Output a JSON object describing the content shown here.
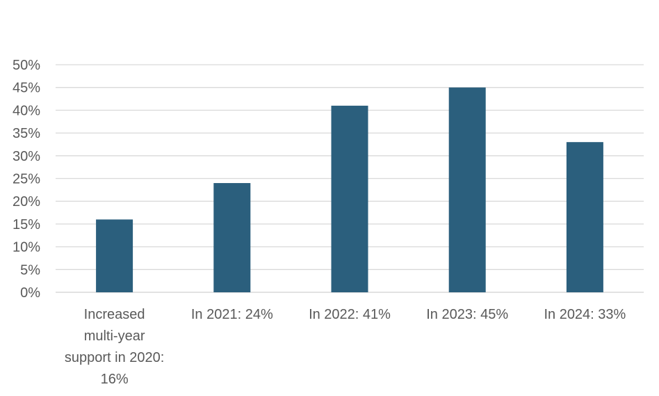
{
  "chart_data": {
    "type": "bar",
    "title": "",
    "xlabel": "",
    "ylabel": "",
    "categories": [
      [
        "Increased",
        "multi-year",
        "support in 2020:",
        "16%"
      ],
      [
        "In 2021: 24%"
      ],
      [
        "In 2022: 41%"
      ],
      [
        "In 2023: 45%"
      ],
      [
        "In 2024: 33%"
      ]
    ],
    "values": [
      16,
      24,
      41,
      45,
      33
    ],
    "ylim": [
      0,
      50
    ],
    "yticks": [
      0,
      5,
      10,
      15,
      20,
      25,
      30,
      35,
      40,
      45,
      50
    ],
    "ytick_labels": [
      "0%",
      "5%",
      "10%",
      "15%",
      "20%",
      "25%",
      "30%",
      "35%",
      "40%",
      "45%",
      "50%"
    ],
    "grid": true,
    "legend": "none",
    "colors": {
      "bar": "#2b5f7d",
      "grid": "#d9d9d9",
      "text": "#595959"
    }
  }
}
